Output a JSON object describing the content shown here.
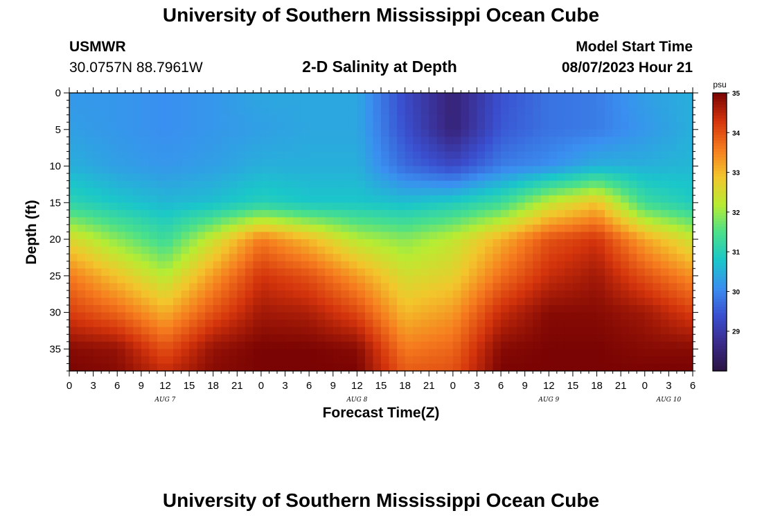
{
  "header": {
    "title": "University of Southern Mississippi Ocean Cube",
    "station": "USMWR",
    "coordinates": "30.0757N  88.7961W",
    "plot_title": "2-D Salinity at Depth",
    "model_label": "Model Start Time",
    "model_time": "08/07/2023 Hour 21"
  },
  "footer": {
    "title": "University of Southern Mississippi Ocean Cube"
  },
  "colors": {
    "colormap": [
      "#2a1340",
      "#3a2a8a",
      "#3a4fcf",
      "#3a8ff0",
      "#1ac7c9",
      "#4be08a",
      "#b8ec32",
      "#f3c52c",
      "#f57a1e",
      "#d4340c",
      "#7a0403"
    ]
  },
  "chart_data": {
    "type": "heatmap",
    "title": "2-D Salinity at Depth",
    "xlabel": "Forecast Time(Z)",
    "ylabel": "Depth (ft)",
    "x_range_hours": [
      0,
      78
    ],
    "y_range_ft": [
      0,
      38
    ],
    "x_tick_hours": [
      0,
      3,
      6,
      9,
      12,
      15,
      18,
      21,
      24,
      27,
      30,
      33,
      36,
      39,
      42,
      45,
      48,
      51,
      54,
      57,
      60,
      63,
      66,
      69,
      72,
      75,
      78
    ],
    "x_tick_labels": [
      "0",
      "3",
      "6",
      "9",
      "12",
      "15",
      "18",
      "21",
      "0",
      "3",
      "6",
      "9",
      "12",
      "15",
      "18",
      "21",
      "0",
      "3",
      "6",
      "9",
      "12",
      "15",
      "18",
      "21",
      "0",
      "3",
      "6"
    ],
    "day_labels": [
      {
        "label": "AUG 7",
        "hour": 12
      },
      {
        "label": "AUG 8",
        "hour": 36
      },
      {
        "label": "AUG 9",
        "hour": 60
      },
      {
        "label": "AUG 10",
        "hour": 75
      }
    ],
    "y_ticks": [
      0,
      5,
      10,
      15,
      20,
      25,
      30,
      35
    ],
    "y_tick_labels": [
      "0",
      "5",
      "10",
      "15",
      "20",
      "25",
      "30",
      "35"
    ],
    "colorbar": {
      "unit": "psu",
      "range": [
        28,
        35
      ],
      "ticks": [
        29,
        30,
        31,
        32,
        33,
        34,
        35
      ],
      "tick_labels": [
        "29",
        "30",
        "31",
        "32",
        "33",
        "34",
        "35"
      ]
    },
    "grid_hours": [
      0,
      6,
      12,
      18,
      24,
      30,
      36,
      42,
      48,
      54,
      60,
      66,
      72,
      78
    ],
    "grid_depths_ft": [
      0,
      5,
      10,
      15,
      20,
      25,
      30,
      35,
      38
    ],
    "salinity_psu": [
      [
        30.2,
        30.2,
        30.1,
        30.2,
        30.4,
        30.4,
        30.4,
        29.3,
        28.5,
        29.4,
        29.8,
        29.9,
        30.3,
        30.5
      ],
      [
        30.3,
        30.2,
        30.1,
        30.2,
        30.3,
        30.4,
        30.4,
        29.4,
        28.5,
        29.5,
        29.8,
        29.9,
        30.2,
        30.5
      ],
      [
        30.5,
        30.3,
        30.2,
        30.3,
        30.5,
        30.5,
        30.5,
        29.7,
        29.3,
        29.9,
        30.1,
        30.5,
        30.5,
        30.6
      ],
      [
        31.1,
        30.8,
        30.6,
        30.7,
        31.0,
        30.8,
        30.8,
        30.7,
        30.9,
        31.3,
        32.3,
        32.9,
        31.3,
        30.9
      ],
      [
        32.6,
        31.9,
        31.3,
        32.4,
        33.6,
        33.0,
        32.2,
        31.9,
        32.3,
        33.1,
        34.0,
        34.3,
        33.2,
        32.4
      ],
      [
        33.6,
        32.9,
        32.2,
        33.3,
        34.3,
        34.0,
        33.3,
        32.5,
        32.7,
        33.7,
        34.4,
        34.7,
        34.0,
        33.4
      ],
      [
        34.2,
        33.8,
        33.1,
        34.0,
        34.7,
        34.6,
        34.1,
        33.0,
        33.3,
        34.4,
        34.9,
        34.9,
        34.7,
        34.2
      ],
      [
        34.9,
        34.8,
        34.0,
        34.8,
        35.0,
        35.0,
        34.9,
        33.6,
        33.8,
        34.9,
        35.0,
        35.0,
        34.9,
        34.9
      ],
      [
        35.0,
        34.9,
        34.4,
        34.9,
        35.0,
        35.0,
        35.0,
        33.9,
        34.0,
        35.0,
        35.0,
        35.0,
        35.0,
        35.0
      ]
    ]
  }
}
